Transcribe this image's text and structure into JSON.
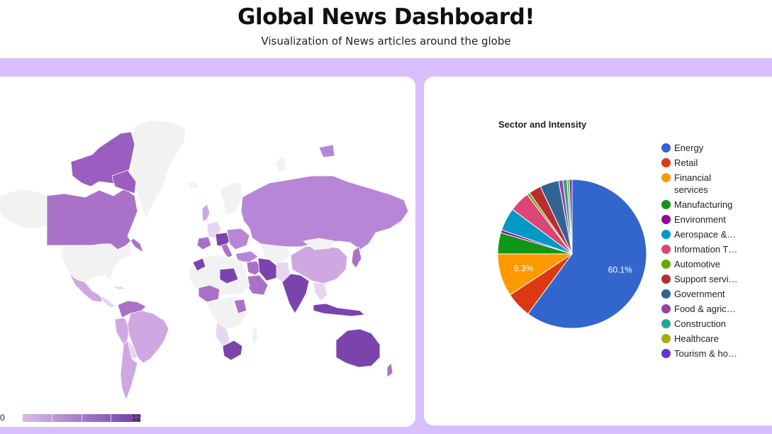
{
  "header": {
    "title": "Global News Dashboard!",
    "subtitle": "Visualization of News articles around the globe"
  },
  "map": {
    "scale_min": "0",
    "scale_max": "12",
    "color_low": "#d8bce8",
    "color_high": "#6f3aa6",
    "no_data_color": "#f2f2f2"
  },
  "chart_data": {
    "type": "pie",
    "title": "Sector and Intensity",
    "slices": [
      {
        "label": "Energy",
        "value": 60.1,
        "color": "#3366cc",
        "display": "60.1%"
      },
      {
        "label": "Retail",
        "value": 5.6,
        "color": "#dc3912",
        "display": ""
      },
      {
        "label": "Financial services",
        "value": 9.3,
        "color": "#ff9900",
        "display": "9.3%"
      },
      {
        "label": "Manufacturing",
        "value": 4.6,
        "color": "#109618",
        "display": ""
      },
      {
        "label": "Environment",
        "value": 0.6,
        "color": "#990099",
        "display": ""
      },
      {
        "label": "Aerospace &…",
        "value": 5.0,
        "color": "#0099c6",
        "display": ""
      },
      {
        "label": "Information T…",
        "value": 4.5,
        "color": "#dd4477",
        "display": ""
      },
      {
        "label": "Automotive",
        "value": 0.6,
        "color": "#66aa00",
        "display": ""
      },
      {
        "label": "Support servi…",
        "value": 2.7,
        "color": "#b82e2e",
        "display": ""
      },
      {
        "label": "Government",
        "value": 4.1,
        "color": "#316395",
        "display": ""
      },
      {
        "label": "Food & agric…",
        "value": 0.9,
        "color": "#994499",
        "display": ""
      },
      {
        "label": "Construction",
        "value": 0.9,
        "color": "#22aa99",
        "display": ""
      },
      {
        "label": "Healthcare",
        "value": 0.5,
        "color": "#aaaa11",
        "display": ""
      },
      {
        "label": "Tourism & ho…",
        "value": 0.6,
        "color": "#6633cc",
        "display": ""
      }
    ]
  }
}
